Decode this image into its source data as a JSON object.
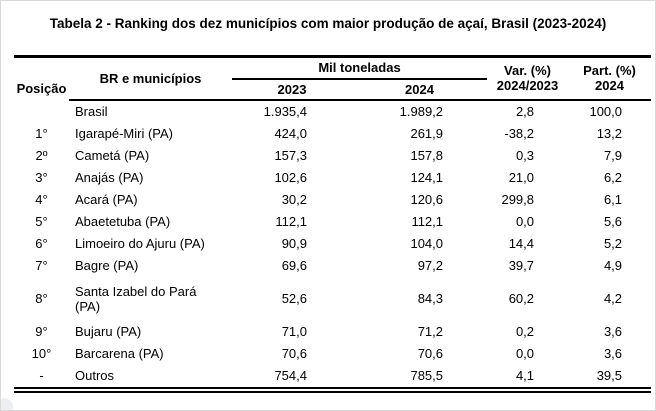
{
  "title": "Tabela 2 - Ranking dos dez municípios com maior produção de açaí, Brasil (2023-2024)",
  "table": {
    "header": {
      "position": "Posição",
      "region": "BR e municípios",
      "group": "Mil toneladas",
      "col_2023": "2023",
      "col_2024": "2024",
      "var_line1": "Var. (%)",
      "var_line2": "2024/2023",
      "part_line1": "Part. (%)",
      "part_line2": "2024"
    },
    "rows": [
      {
        "position": "",
        "name": "Brasil",
        "y2023": "1.935,4",
        "y2024": "1.989,2",
        "var": "2,8",
        "part": "100,0"
      },
      {
        "position": "1°",
        "name": "Igarapé-Miri (PA)",
        "y2023": "424,0",
        "y2024": "261,9",
        "var": "-38,2",
        "part": "13,2"
      },
      {
        "position": "2º",
        "name": "Cametá (PA)",
        "y2023": "157,3",
        "y2024": "157,8",
        "var": "0,3",
        "part": "7,9"
      },
      {
        "position": "3°",
        "name": "Anajás (PA)",
        "y2023": "102,6",
        "y2024": "124,1",
        "var": "21,0",
        "part": "6,2"
      },
      {
        "position": "4°",
        "name": "Acará (PA)",
        "y2023": "30,2",
        "y2024": "120,6",
        "var": "299,8",
        "part": "6,1"
      },
      {
        "position": "5°",
        "name": "Abaetetuba (PA)",
        "y2023": "112,1",
        "y2024": "112,1",
        "var": "0,0",
        "part": "5,6"
      },
      {
        "position": "6°",
        "name": "Limoeiro do Ajuru (PA)",
        "y2023": "90,9",
        "y2024": "104,0",
        "var": "14,4",
        "part": "5,2"
      },
      {
        "position": "7°",
        "name": "Bagre (PA)",
        "y2023": "69,6",
        "y2024": "97,2",
        "var": "39,7",
        "part": "4,9"
      },
      {
        "position": "8°",
        "name": "Santa Izabel do Pará (PA)",
        "y2023": "52,6",
        "y2024": "84,3",
        "var": "60,2",
        "part": "4,2"
      },
      {
        "position": "9°",
        "name": "Bujaru (PA)",
        "y2023": "71,0",
        "y2024": "71,2",
        "var": "0,2",
        "part": "3,6"
      },
      {
        "position": "10°",
        "name": "Barcarena (PA)",
        "y2023": "70,6",
        "y2024": "70,6",
        "var": "0,0",
        "part": "3,6"
      },
      {
        "position": "-",
        "name": "Outros",
        "y2023": "754,4",
        "y2024": "785,5",
        "var": "4,1",
        "part": "39,5"
      }
    ]
  }
}
